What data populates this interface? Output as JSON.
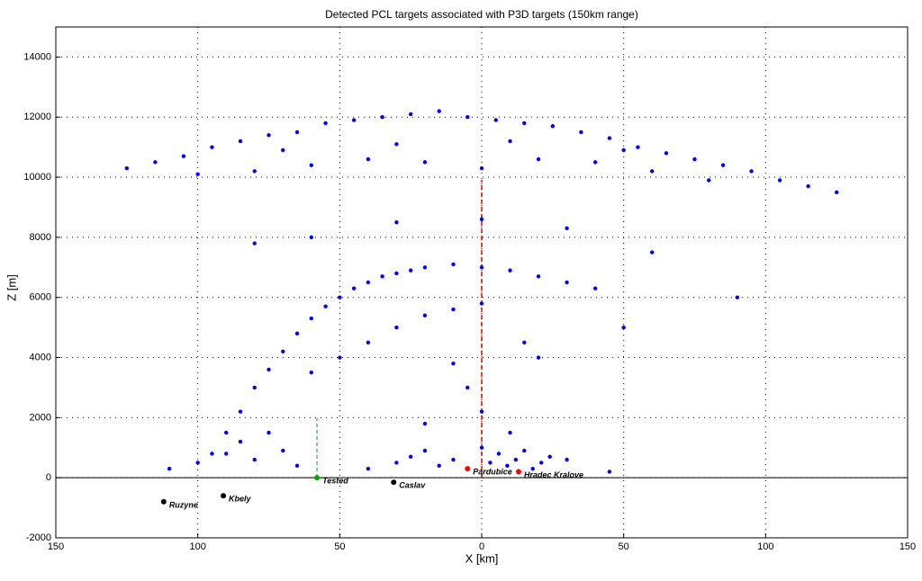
{
  "chart_data": {
    "type": "scatter",
    "title": "Detected PCL targets associated with P3D targets (150km range)",
    "x_label": "X [km]",
    "y_label": "Z [m]",
    "xlim": [
      -150,
      150
    ],
    "xticks": [
      {
        "value": -150,
        "label": "150"
      },
      {
        "value": -100,
        "label": "100"
      },
      {
        "value": -50,
        "label": "50"
      },
      0,
      50,
      100,
      150
    ],
    "ylim": [
      -2000,
      15000
    ],
    "yticks": [
      -2000,
      0,
      2000,
      4000,
      6000,
      8000,
      10000,
      12000,
      14000
    ],
    "grid": true,
    "series": [
      {
        "color": "#0000ff",
        "x": [
          -125,
          -115,
          -105,
          -95,
          -85,
          -75,
          -65,
          -55,
          -45,
          -35,
          -25,
          -15,
          -5,
          5,
          15,
          25,
          35,
          45,
          55,
          65,
          75,
          85,
          95,
          105,
          115,
          125,
          -100,
          -80,
          -60,
          -40,
          -20,
          0,
          20,
          40,
          60,
          80,
          -70,
          -30,
          10,
          50,
          -95,
          -90,
          -85,
          -80,
          -75,
          -70,
          -65,
          -60,
          -55,
          -50,
          -45,
          -40,
          -35,
          -30,
          -25,
          -20,
          -10,
          0,
          10,
          20,
          30,
          40,
          -60,
          -50,
          -40,
          -30,
          -20,
          -10,
          0,
          15,
          -110,
          -100,
          -90,
          -85,
          -80,
          -75,
          -70,
          -65,
          -40,
          -30,
          -25,
          -20,
          -15,
          -10,
          -5,
          0,
          3,
          6,
          9,
          12,
          15,
          18,
          21,
          24,
          -20,
          0,
          10,
          30,
          45,
          -5,
          -60,
          -30,
          0,
          30,
          60,
          90,
          -80,
          20,
          -10,
          50
        ],
        "values": [
          10300,
          10500,
          10700,
          11000,
          11200,
          11400,
          11500,
          11800,
          11900,
          12000,
          12100,
          12200,
          12000,
          11900,
          11800,
          11700,
          11500,
          11300,
          11000,
          10800,
          10600,
          10400,
          10200,
          9900,
          9700,
          9500,
          10100,
          10200,
          10400,
          10600,
          10500,
          10300,
          10600,
          10500,
          10200,
          9900,
          10900,
          11100,
          11200,
          10900,
          800,
          1500,
          2200,
          3000,
          3600,
          4200,
          4800,
          5300,
          5700,
          6000,
          6300,
          6500,
          6700,
          6800,
          6900,
          7000,
          7100,
          7000,
          6900,
          6700,
          6500,
          6300,
          3500,
          4000,
          4500,
          5000,
          5400,
          5600,
          5800,
          4500,
          300,
          500,
          800,
          1200,
          600,
          1500,
          900,
          400,
          300,
          500,
          700,
          900,
          400,
          600,
          300,
          1000,
          500,
          800,
          400,
          600,
          900,
          300,
          500,
          700,
          1800,
          2200,
          1500,
          600,
          200,
          3000,
          8000,
          8500,
          8600,
          8300,
          7500,
          6000,
          7800,
          4000,
          3800,
          5000
        ]
      }
    ],
    "stations": [
      {
        "name": "Ruzyne",
        "x": -112,
        "y": -800,
        "color": "#000000"
      },
      {
        "name": "Kbely",
        "x": -91,
        "y": -600,
        "color": "#000000"
      },
      {
        "name": "Tested",
        "x": -58,
        "y": 0,
        "color": "#00aa00"
      },
      {
        "name": "Caslav",
        "x": -31,
        "y": -150,
        "color": "#000000"
      },
      {
        "name": "Pardubice",
        "x": -5,
        "y": 300,
        "color": "#ff0000"
      },
      {
        "name": "Hradec Kralove",
        "x": 13,
        "y": 200,
        "color": "#ff0000"
      }
    ]
  }
}
